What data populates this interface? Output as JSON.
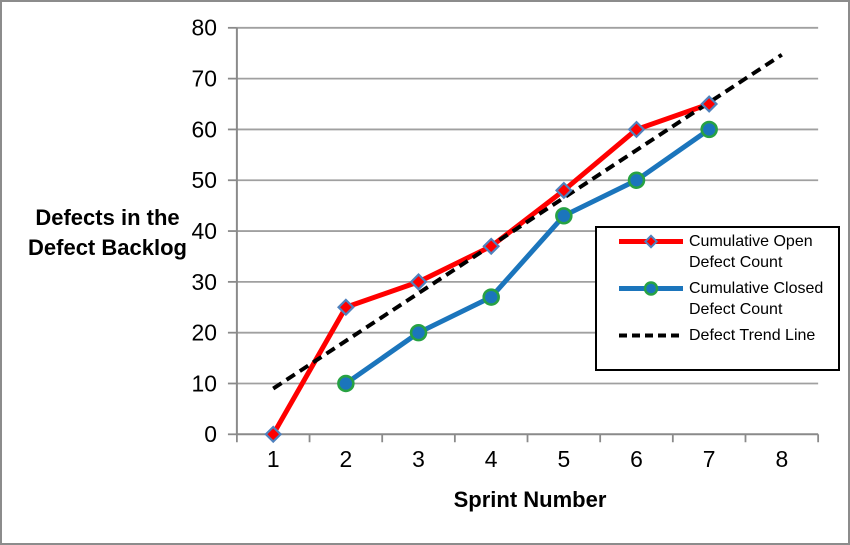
{
  "figure": {
    "background": "#FFFFFF",
    "border_color": "#8C8C8C"
  },
  "chart_data": {
    "type": "line",
    "title": "",
    "xlabel": "Sprint Number",
    "ylabel": "Defects in the\nDefect Backlog",
    "x_categories": [
      "1",
      "2",
      "3",
      "4",
      "5",
      "6",
      "7",
      "8"
    ],
    "y_tick_labels": [
      "0",
      "10",
      "20",
      "30",
      "40",
      "50",
      "60",
      "70",
      "80"
    ],
    "ylim": [
      0,
      80
    ],
    "y_tick_step": 10,
    "grid": "horizontal gridlines on",
    "legend_position": "middle-right overlay",
    "axis_color": "#8A8A8A",
    "gridline_color": "#A0A0A0",
    "series": [
      {
        "name": "Cumulative Open Defect Count",
        "line_style": "solid",
        "color": "#FF0000",
        "marker": "diamond",
        "marker_fill": "#FF0000",
        "marker_outline": "#4F81BD",
        "x": [
          1,
          2,
          3,
          4,
          5,
          6,
          7
        ],
        "values": [
          0,
          25,
          30,
          37,
          48,
          60,
          65
        ]
      },
      {
        "name": "Cumulative Closed Defect Count",
        "line_style": "solid",
        "color": "#1B75BC",
        "marker": "circle",
        "marker_fill": "#1B75BC",
        "marker_outline": "#27A243",
        "x": [
          2,
          3,
          4,
          5,
          6,
          7
        ],
        "values": [
          10,
          20,
          27,
          43,
          50,
          60
        ]
      },
      {
        "name": "Defect Trend Line",
        "line_style": "dashed",
        "color": "#000000",
        "marker": "none",
        "x": [
          1,
          8
        ],
        "values": [
          9,
          74.7
        ]
      }
    ]
  }
}
